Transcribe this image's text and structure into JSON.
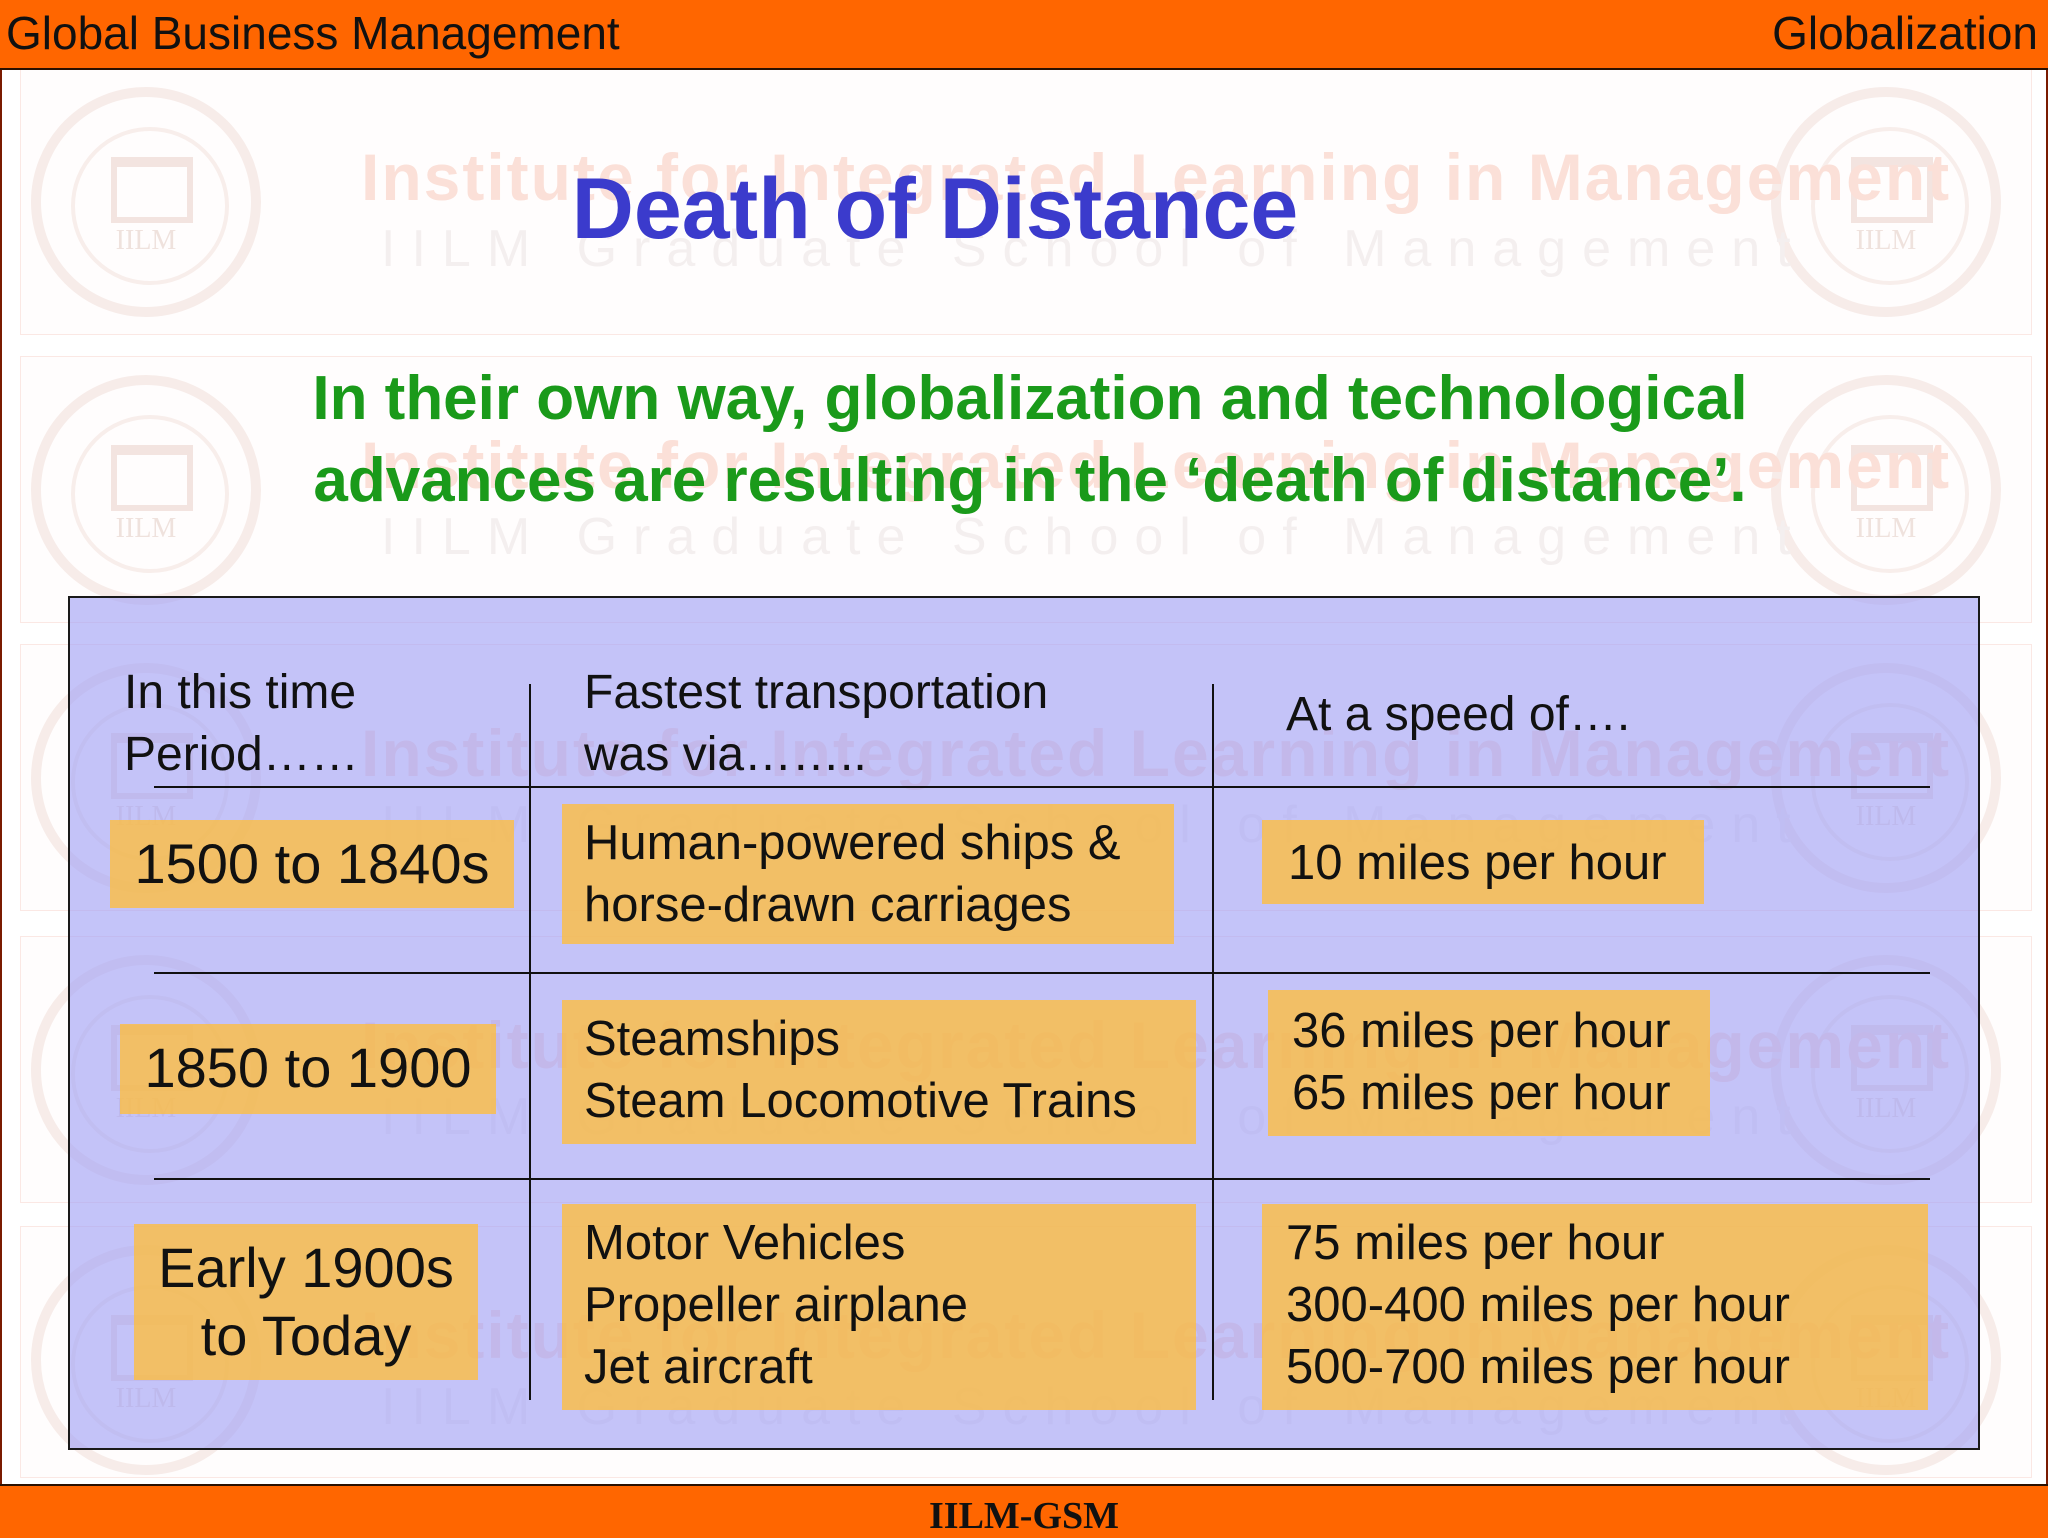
{
  "header": {
    "left": "Global Business Management",
    "right": "Globalization"
  },
  "footer": {
    "label": "IILM-GSM"
  },
  "watermark": {
    "line1": "Institute for Integrated Learning in Management",
    "line2": "IILM Graduate School of Management",
    "seal": "IILM"
  },
  "slide": {
    "title": "Death of Distance",
    "subtitle_line1": "In their own way, globalization and technological",
    "subtitle_line2": "advances are resulting in the ‘death of distance’."
  },
  "table": {
    "headers": {
      "period_line1": "In this time",
      "period_line2": "Period……",
      "transport_line1": "Fastest transportation",
      "transport_line2": "was via……..",
      "speed": "At a speed of…."
    },
    "rows": [
      {
        "period": [
          "1500 to 1840s"
        ],
        "transport": [
          "Human-powered ships &",
          "horse-drawn carriages"
        ],
        "speed": [
          "10 miles per hour"
        ]
      },
      {
        "period": [
          "1850 to 1900"
        ],
        "transport": [
          "Steamships",
          "Steam Locomotive Trains"
        ],
        "speed": [
          "36 miles per hour",
          "65 miles per hour"
        ]
      },
      {
        "period": [
          "Early 1900s",
          "to Today"
        ],
        "transport": [
          "Motor Vehicles",
          "Propeller airplane",
          "Jet aircraft"
        ],
        "speed": [
          "75 miles per hour",
          "300-400 miles per hour",
          "500-700 miles per hour"
        ]
      }
    ]
  },
  "colors": {
    "bar": "#ff6600",
    "title": "#3b3bcc",
    "subtitle": "#1a9a1a",
    "panel": "#a0a0f5",
    "highlight": "#ffbe3c"
  }
}
